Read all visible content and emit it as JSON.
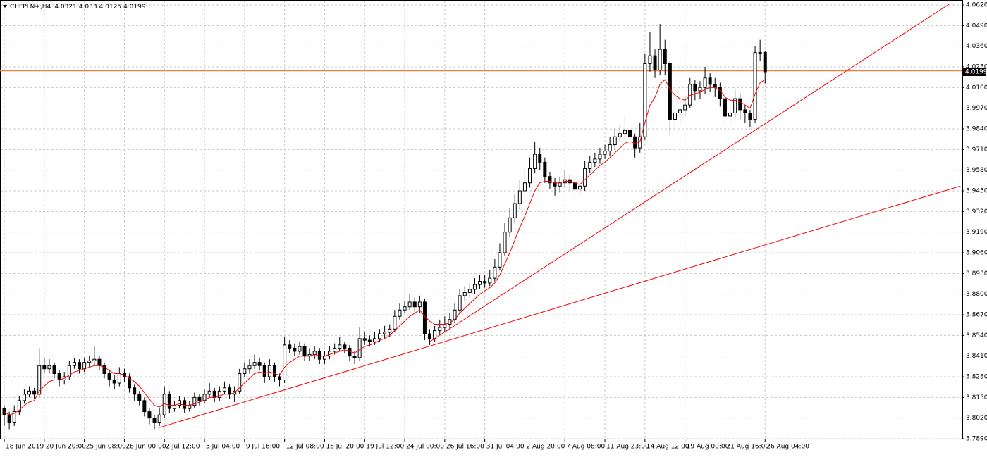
{
  "chart_data": {
    "type": "candlestick",
    "title": "CHFPLN+,H4",
    "grid": true,
    "up_color": "#ffffff",
    "down_color": "#000000",
    "xlim": [
      -0.85,
      191.4
    ],
    "ylim": [
      3.789,
      4.062
    ],
    "xticks": [
      {
        "value": 0,
        "label": "18 Jun 2019"
      },
      {
        "value": 8,
        "label": "20 Jun 20:00"
      },
      {
        "value": 16,
        "label": "25 Jun 08:00"
      },
      {
        "value": 24,
        "label": "28 Jun 00:00"
      },
      {
        "value": 32,
        "label": "2 Jul 12:00"
      },
      {
        "value": 40,
        "label": "5 Jul 04:00"
      },
      {
        "value": 48,
        "label": "9 Jul 16:00"
      },
      {
        "value": 56,
        "label": "12 Jul 08:00"
      },
      {
        "value": 64,
        "label": "16 Jul 20:00"
      },
      {
        "value": 72,
        "label": "19 Jul 12:00"
      },
      {
        "value": 80,
        "label": "24 Jul 00:00"
      },
      {
        "value": 88,
        "label": "26 Jul 16:00"
      },
      {
        "value": 96,
        "label": "31 Jul 04:00"
      },
      {
        "value": 104,
        "label": "2 Aug 20:00"
      },
      {
        "value": 112,
        "label": "7 Aug 08:00"
      },
      {
        "value": 120,
        "label": "11 Aug 23:00"
      },
      {
        "value": 128,
        "label": "14 Aug 12:00"
      },
      {
        "value": 136,
        "label": "19 Aug 00:00"
      },
      {
        "value": 144,
        "label": "21 Aug 16:00"
      },
      {
        "value": 152,
        "label": "26 Aug 04:00"
      }
    ],
    "yticks": [
      {
        "value": 4.062,
        "label": "4.0620"
      },
      {
        "value": 4.049,
        "label": "4.0490"
      },
      {
        "value": 4.036,
        "label": "4.0360"
      },
      {
        "value": 4.023,
        "label": "4.0230"
      },
      {
        "value": 4.01,
        "label": "4.0100"
      },
      {
        "value": 3.997,
        "label": "3.9970"
      },
      {
        "value": 3.984,
        "label": "3.9840"
      },
      {
        "value": 3.971,
        "label": "3.9710"
      },
      {
        "value": 3.958,
        "label": "3.9580"
      },
      {
        "value": 3.945,
        "label": "3.9450"
      },
      {
        "value": 3.932,
        "label": "3.9320"
      },
      {
        "value": 3.919,
        "label": "3.9190"
      },
      {
        "value": 3.906,
        "label": "3.9060"
      },
      {
        "value": 3.893,
        "label": "3.8930"
      },
      {
        "value": 3.88,
        "label": "3.8800"
      },
      {
        "value": 3.867,
        "label": "3.8670"
      },
      {
        "value": 3.854,
        "label": "3.8540"
      },
      {
        "value": 3.841,
        "label": "3.8410"
      },
      {
        "value": 3.828,
        "label": "3.8280"
      },
      {
        "value": 3.815,
        "label": "3.8150"
      },
      {
        "value": 3.802,
        "label": "3.8020"
      },
      {
        "value": 3.789,
        "label": "3.7890"
      }
    ],
    "open": [
      3.808,
      3.804,
      3.799,
      3.806,
      3.813,
      3.817,
      3.819,
      3.817,
      3.835,
      3.833,
      3.835,
      3.83,
      3.826,
      3.828,
      3.835,
      3.837,
      3.833,
      3.837,
      3.838,
      3.839,
      3.835,
      3.83,
      3.826,
      3.824,
      3.83,
      3.828,
      3.821,
      3.817,
      3.813,
      3.806,
      3.802,
      3.799,
      3.804,
      3.817,
      3.808,
      3.81,
      3.813,
      3.808,
      3.81,
      3.815,
      3.813,
      3.817,
      3.819,
      3.815,
      3.819,
      3.821,
      3.817,
      3.819,
      3.83,
      3.833,
      3.835,
      3.837,
      3.835,
      3.828,
      3.835,
      3.828,
      3.826,
      3.848,
      3.846,
      3.844,
      3.847,
      3.841,
      3.842,
      3.844,
      3.839,
      3.841,
      3.844,
      3.846,
      3.848,
      3.846,
      3.841,
      3.84,
      3.852,
      3.851,
      3.85,
      3.852,
      3.855,
      3.856,
      3.858,
      3.866,
      3.87,
      3.872,
      3.875,
      3.872,
      3.875,
      3.855,
      3.852,
      3.857,
      3.859,
      3.861,
      3.864,
      3.87,
      3.879,
      3.881,
      3.883,
      3.886,
      3.888,
      3.887,
      3.89,
      3.897,
      3.906,
      3.919,
      3.928,
      3.937,
      3.945,
      3.95,
      3.959,
      3.968,
      3.963,
      3.954,
      3.95,
      3.948,
      3.95,
      3.952,
      3.95,
      3.946,
      3.948,
      3.959,
      3.963,
      3.965,
      3.968,
      3.97,
      3.974,
      3.979,
      3.981,
      3.983,
      3.979,
      3.972,
      3.979,
      4.025,
      4.03,
      4.021,
      4.034,
      4.025,
      3.99,
      3.994,
      3.996,
      3.999,
      4.012,
      4.008,
      4.01,
      4.016,
      4.012,
      4.01,
      4.003,
      3.992,
      3.994,
      4.003,
      3.996,
      3.994,
      3.99,
      4.032,
      4.0321
    ],
    "high": [
      3.81,
      3.806,
      3.81,
      3.816,
      3.82,
      3.822,
      3.821,
      3.846,
      3.84,
      3.839,
      3.837,
      3.832,
      3.831,
      3.838,
      3.84,
      3.839,
      3.84,
      3.841,
      3.847,
      3.841,
      3.837,
      3.832,
      3.829,
      3.834,
      3.833,
      3.83,
      3.823,
      3.819,
      3.815,
      3.808,
      3.804,
      3.808,
      3.822,
      3.819,
      3.813,
      3.816,
      3.815,
      3.813,
      3.818,
      3.817,
      3.82,
      3.824,
      3.821,
      3.822,
      3.825,
      3.823,
      3.822,
      3.833,
      3.837,
      3.839,
      3.842,
      3.84,
      3.837,
      3.839,
      3.837,
      3.83,
      3.853,
      3.851,
      3.849,
      3.85,
      3.849,
      3.846,
      3.847,
      3.846,
      3.844,
      3.847,
      3.849,
      3.853,
      3.85,
      3.848,
      3.844,
      3.859,
      3.856,
      3.854,
      3.856,
      3.858,
      3.86,
      3.861,
      3.87,
      3.874,
      3.876,
      3.88,
      3.878,
      3.879,
      3.877,
      3.858,
      3.86,
      3.864,
      3.866,
      3.868,
      3.874,
      3.883,
      3.885,
      3.887,
      3.89,
      3.892,
      3.892,
      3.895,
      3.902,
      3.912,
      3.925,
      3.934,
      3.943,
      3.952,
      3.958,
      3.966,
      3.976,
      3.972,
      3.966,
      3.957,
      3.953,
      3.954,
      3.958,
      3.955,
      3.953,
      3.952,
      3.964,
      3.967,
      3.969,
      3.972,
      3.974,
      3.979,
      3.984,
      3.986,
      3.993,
      3.986,
      3.981,
      3.988,
      4.031,
      4.045,
      4.034,
      4.05,
      4.04,
      4.027,
      4.0,
      4.002,
      4.004,
      4.016,
      4.015,
      4.014,
      4.023,
      4.019,
      4.016,
      4.013,
      4.005,
      3.998,
      4.009,
      4.006,
      3.999,
      3.996,
      4.036,
      4.04,
      4.033
    ],
    "low": [
      3.797,
      3.795,
      3.797,
      3.804,
      3.811,
      3.815,
      3.814,
      3.815,
      3.83,
      3.83,
      3.827,
      3.822,
      3.823,
      3.826,
      3.833,
      3.83,
      3.831,
      3.834,
      3.835,
      3.832,
      3.827,
      3.822,
      3.82,
      3.822,
      3.825,
      3.818,
      3.813,
      3.81,
      3.803,
      3.798,
      3.795,
      3.797,
      3.802,
      3.805,
      3.806,
      3.808,
      3.805,
      3.806,
      3.808,
      3.81,
      3.811,
      3.815,
      3.812,
      3.813,
      3.817,
      3.814,
      3.812,
      3.817,
      3.828,
      3.83,
      3.833,
      3.832,
      3.824,
      3.826,
      3.825,
      3.822,
      3.824,
      3.843,
      3.841,
      3.842,
      3.838,
      3.838,
      3.839,
      3.836,
      3.836,
      3.839,
      3.842,
      3.844,
      3.843,
      3.838,
      3.836,
      3.838,
      3.848,
      3.847,
      3.848,
      3.85,
      3.852,
      3.853,
      3.856,
      3.864,
      3.868,
      3.87,
      3.869,
      3.868,
      3.851,
      3.848,
      3.85,
      3.854,
      3.856,
      3.858,
      3.862,
      3.868,
      3.876,
      3.878,
      3.88,
      3.883,
      3.884,
      3.885,
      3.888,
      3.895,
      3.904,
      3.916,
      3.925,
      3.933,
      3.942,
      3.947,
      3.956,
      3.958,
      3.95,
      3.946,
      3.942,
      3.944,
      3.947,
      3.945,
      3.942,
      3.942,
      3.945,
      3.956,
      3.96,
      3.962,
      3.965,
      3.967,
      3.971,
      3.976,
      3.978,
      3.974,
      3.966,
      3.969,
      3.977,
      4.02,
      4.016,
      4.018,
      4.018,
      3.98,
      3.984,
      3.988,
      3.992,
      3.997,
      4.002,
      4.003,
      4.006,
      4.007,
      4.004,
      3.998,
      3.987,
      3.988,
      3.99,
      3.99,
      3.988,
      3.985,
      3.988,
      4.027,
      4.0125
    ],
    "close": [
      3.804,
      3.799,
      3.806,
      3.813,
      3.817,
      3.819,
      3.817,
      3.835,
      3.833,
      3.835,
      3.83,
      3.826,
      3.828,
      3.835,
      3.837,
      3.833,
      3.837,
      3.838,
      3.839,
      3.835,
      3.83,
      3.826,
      3.824,
      3.83,
      3.828,
      3.821,
      3.817,
      3.813,
      3.806,
      3.802,
      3.799,
      3.804,
      3.817,
      3.808,
      3.81,
      3.813,
      3.808,
      3.81,
      3.815,
      3.813,
      3.817,
      3.819,
      3.815,
      3.819,
      3.821,
      3.817,
      3.819,
      3.83,
      3.833,
      3.835,
      3.837,
      3.835,
      3.828,
      3.835,
      3.828,
      3.826,
      3.848,
      3.846,
      3.844,
      3.847,
      3.841,
      3.842,
      3.844,
      3.839,
      3.841,
      3.844,
      3.846,
      3.848,
      3.846,
      3.841,
      3.84,
      3.852,
      3.851,
      3.85,
      3.852,
      3.855,
      3.856,
      3.858,
      3.866,
      3.87,
      3.872,
      3.875,
      3.872,
      3.875,
      3.855,
      3.852,
      3.857,
      3.859,
      3.861,
      3.864,
      3.87,
      3.879,
      3.881,
      3.883,
      3.886,
      3.888,
      3.887,
      3.89,
      3.897,
      3.906,
      3.919,
      3.928,
      3.937,
      3.945,
      3.95,
      3.959,
      3.968,
      3.963,
      3.954,
      3.95,
      3.948,
      3.95,
      3.952,
      3.95,
      3.946,
      3.948,
      3.959,
      3.963,
      3.965,
      3.968,
      3.97,
      3.974,
      3.979,
      3.981,
      3.983,
      3.979,
      3.972,
      3.979,
      4.025,
      4.03,
      4.021,
      4.034,
      4.025,
      3.99,
      3.994,
      3.996,
      3.999,
      4.012,
      4.008,
      4.01,
      4.016,
      4.012,
      4.01,
      4.003,
      3.992,
      3.994,
      4.003,
      3.996,
      3.994,
      3.99,
      4.032,
      4.0321,
      4.0199
    ],
    "ma": {
      "color": "#ff0000",
      "values": [
        3.806,
        3.804,
        3.805,
        3.807,
        3.81,
        3.812,
        3.813,
        3.819,
        3.822,
        3.825,
        3.826,
        3.826,
        3.827,
        3.829,
        3.831,
        3.832,
        3.833,
        3.834,
        3.835,
        3.835,
        3.834,
        3.832,
        3.83,
        3.83,
        3.829,
        3.827,
        3.825,
        3.822,
        3.818,
        3.814,
        3.81,
        3.809,
        3.811,
        3.81,
        3.81,
        3.811,
        3.81,
        3.81,
        3.811,
        3.812,
        3.813,
        3.815,
        3.815,
        3.816,
        3.817,
        3.817,
        3.818,
        3.821,
        3.824,
        3.827,
        3.83,
        3.831,
        3.83,
        3.831,
        3.83,
        3.829,
        3.834,
        3.837,
        3.839,
        3.841,
        3.841,
        3.841,
        3.842,
        3.841,
        3.841,
        3.842,
        3.843,
        3.844,
        3.845,
        3.844,
        3.843,
        3.845,
        3.847,
        3.848,
        3.849,
        3.851,
        3.852,
        3.854,
        3.857,
        3.86,
        3.863,
        3.866,
        3.868,
        3.87,
        3.866,
        3.863,
        3.861,
        3.861,
        3.861,
        3.862,
        3.864,
        3.868,
        3.871,
        3.874,
        3.877,
        3.88,
        3.882,
        3.884,
        3.887,
        3.892,
        3.899,
        3.906,
        3.914,
        3.922,
        3.929,
        3.937,
        3.945,
        3.95,
        3.951,
        3.951,
        3.95,
        3.95,
        3.951,
        3.951,
        3.95,
        3.949,
        3.952,
        3.955,
        3.958,
        3.961,
        3.963,
        3.966,
        3.969,
        3.972,
        3.975,
        3.976,
        3.975,
        3.976,
        3.988,
        3.999,
        4.004,
        4.012,
        4.015,
        4.009,
        4.005,
        4.003,
        4.002,
        4.005,
        4.006,
        4.007,
        4.009,
        4.01,
        4.01,
        4.008,
        4.004,
        4.002,
        4.002,
        4.001,
        3.999,
        3.997,
        4.006,
        4.013,
        4.015
      ]
    },
    "trendlines": [
      {
        "color": "#ff0000",
        "x": [
          31,
          191
        ],
        "y": [
          3.796,
          3.948
        ]
      },
      {
        "color": "#ff0000",
        "x": [
          85,
          189
        ],
        "y": [
          3.85,
          4.063
        ]
      }
    ],
    "hline": {
      "color": "#f08040",
      "value": 4.0205
    }
  }
}
